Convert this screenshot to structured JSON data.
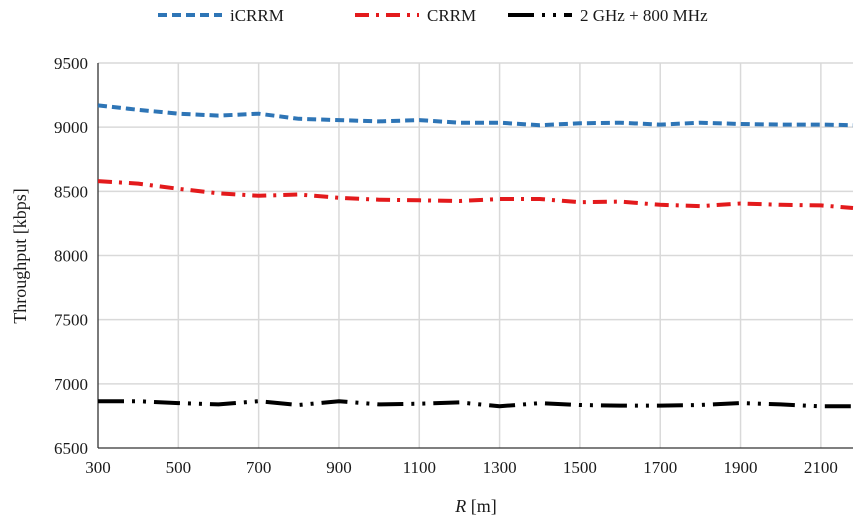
{
  "chart_data": {
    "type": "line",
    "title": "",
    "xlabel": "R [m]",
    "xlabel_var": "R",
    "xlabel_unit": " [m]",
    "ylabel": "Throughput [kbps]",
    "xlim": [
      300,
      2180
    ],
    "ylim": [
      6500,
      9500
    ],
    "xticks": [
      300,
      500,
      700,
      900,
      1100,
      1300,
      1500,
      1700,
      1900,
      2100
    ],
    "yticks": [
      6500,
      7000,
      7500,
      8000,
      8500,
      9000,
      9500
    ],
    "grid": true,
    "legend_position": "top",
    "x": [
      300,
      400,
      500,
      600,
      700,
      800,
      900,
      1000,
      1100,
      1200,
      1300,
      1400,
      1500,
      1600,
      1700,
      1800,
      1900,
      2000,
      2100,
      2180
    ],
    "series": [
      {
        "name": "iCRRM",
        "color": "#2e75b6",
        "dash": "dashed",
        "values": [
          9170,
          9135,
          9105,
          9090,
          9105,
          9065,
          9055,
          9045,
          9055,
          9035,
          9035,
          9015,
          9030,
          9035,
          9020,
          9035,
          9025,
          9020,
          9020,
          9015
        ]
      },
      {
        "name": "CRRM",
        "color": "#e31a1c",
        "dash": "dash-dot",
        "values": [
          8580,
          8560,
          8520,
          8485,
          8465,
          8475,
          8450,
          8435,
          8430,
          8425,
          8440,
          8440,
          8415,
          8420,
          8395,
          8385,
          8405,
          8395,
          8390,
          8370
        ]
      },
      {
        "name": "2 GHz + 800 MHz",
        "color": "#000000",
        "dash": "long-dash-dot-dot",
        "values": [
          6865,
          6865,
          6850,
          6840,
          6865,
          6835,
          6865,
          6840,
          6845,
          6855,
          6825,
          6850,
          6835,
          6830,
          6830,
          6835,
          6850,
          6840,
          6825,
          6825
        ]
      }
    ]
  }
}
